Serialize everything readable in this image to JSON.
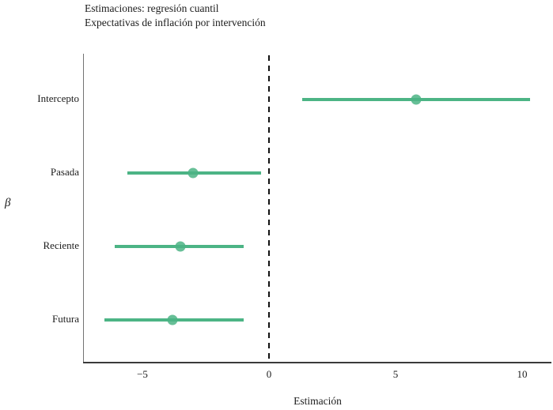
{
  "title": {
    "line1": "Estimaciones: regresión cuantil",
    "line2": "Expectativas de inflación por intervención"
  },
  "axes": {
    "y_label": "β",
    "x_label": "Estimación",
    "x_ticks": [
      {
        "value": -5,
        "label": "−5"
      },
      {
        "value": 0,
        "label": "0"
      },
      {
        "value": 5,
        "label": "5"
      },
      {
        "value": 10,
        "label": "10"
      }
    ]
  },
  "colors": {
    "point_and_ci": "#4cb485",
    "zero_line": "#111111",
    "x_axis": "#3a3a3a",
    "y_axis": "#737373",
    "text": "#1c1c1c"
  },
  "chart_data": {
    "type": "scatter",
    "subtype": "coefficient-pointrange",
    "title": "Estimaciones: regresión cuantil",
    "subtitle": "Expectativas de inflación por intervención",
    "xlabel": "Estimación",
    "ylabel": "β",
    "xlim": [
      -7.3,
      11.2
    ],
    "grid": false,
    "legend": false,
    "zero_reference_line": 0,
    "categories": [
      "Intercepto",
      "Pasada",
      "Reciente",
      "Futura"
    ],
    "points": [
      {
        "category": "Intercepto",
        "estimate": 5.8,
        "ci_low": 1.3,
        "ci_high": 10.3
      },
      {
        "category": "Pasada",
        "estimate": -3.0,
        "ci_low": -5.6,
        "ci_high": -0.3
      },
      {
        "category": "Reciente",
        "estimate": -3.5,
        "ci_low": -6.1,
        "ci_high": -1.0
      },
      {
        "category": "Futura",
        "estimate": -3.8,
        "ci_low": -6.5,
        "ci_high": -1.0
      }
    ]
  }
}
